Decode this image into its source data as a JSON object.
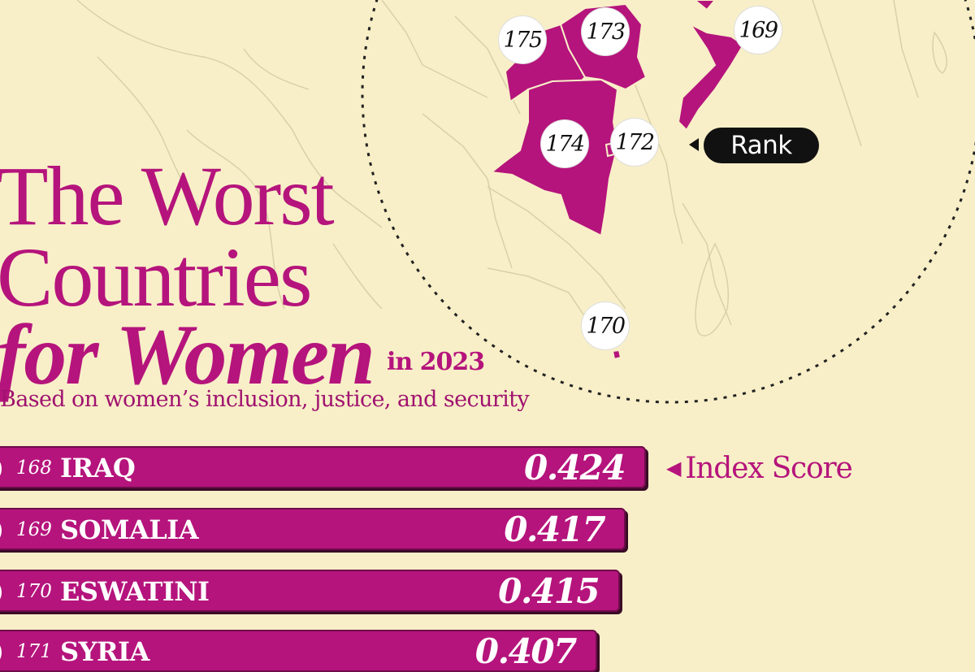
{
  "title": {
    "line1": "The Worst",
    "line2": "Countries",
    "line3": "for Women",
    "year_label": "in 2023",
    "subtitle": "Based on women’s inclusion, justice, and security"
  },
  "legend": {
    "rank_label": "Rank",
    "score_label": "Index Score"
  },
  "colors": {
    "background": "#f8efc8",
    "accent": "#b5147c",
    "map_highlight": "#b5147c",
    "badge": "#ffffff",
    "pill": "#111111"
  },
  "map": {
    "badges": [
      {
        "country": "Chad",
        "rank": "175"
      },
      {
        "country": "Sudan",
        "rank": "173"
      },
      {
        "country": "Somalia",
        "rank": "169"
      },
      {
        "country": "DR Congo",
        "rank": "174"
      },
      {
        "country": "Burundi",
        "rank": "172"
      },
      {
        "country": "Eswatini",
        "rank": "170"
      }
    ]
  },
  "chart_data": {
    "type": "bar",
    "orientation": "horizontal",
    "value_label": "Index Score",
    "rows": [
      {
        "rank": "168",
        "country": "IRAQ",
        "score": "0.424",
        "flag": "iraq-flag"
      },
      {
        "rank": "169",
        "country": "SOMALIA",
        "score": "0.417",
        "flag": "somalia-flag"
      },
      {
        "rank": "170",
        "country": "ESWATINI",
        "score": "0.415",
        "flag": "eswatini-flag"
      },
      {
        "rank": "171",
        "country": "SYRIA",
        "score": "0.407",
        "flag": "syria-flag"
      }
    ],
    "values": [
      0.424,
      0.417,
      0.415,
      0.407
    ]
  }
}
